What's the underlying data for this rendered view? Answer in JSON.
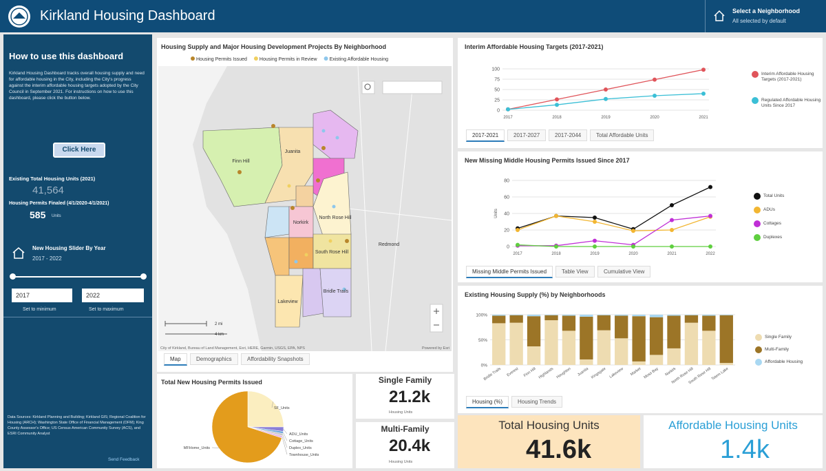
{
  "header": {
    "title": "Kirkland Housing Dashboard",
    "selector_title": "Select a Neighborhood",
    "selector_subtitle": "All selected by default"
  },
  "sidebar": {
    "heading": "How to use this dashboard",
    "description": "Kirkland Housing Dashboard tracks overall housing supply and need for affordable housing in the City, including the City's progress against the interim affordable housing targets adopted by the City Council in September 2021. For instructions on how to use this dashboard, please click the button below.",
    "button": "Click Here",
    "existing_label": "Existing Total Housing Units (2021)",
    "existing_value": "41,564",
    "finaled_label": "Housing Permits Finaled (4/1/2020-4/1/2021)",
    "finaled_value": "585",
    "finaled_unit": "Units",
    "slider_title": "New Housing Slider By Year",
    "slider_range": "2017 - 2022",
    "slider_min": "2017",
    "slider_max": "2022",
    "set_min": "Set to minimum",
    "set_max": "Set to maximum",
    "data_sources": "Data Sources: Kirkland Planning and Building; Kirkland GIS; Regional Coalition for Housing (ARCH); Washington State Office of Financial Management (OFM); King County Assessor's Office; US Census American Community Survey (ACS), and ESRI Community Analyst",
    "feedback": "Send Feedback"
  },
  "map": {
    "title": "Housing Supply and Major Housing Development Projects By Neighborhood",
    "legend": [
      "Housing Permits Issued",
      "Housing Permits in Review",
      "Existing Affordable Housing"
    ],
    "labels": [
      "Finn Hill",
      "Juanita",
      "North Rose Hill",
      "Norkirk",
      "South Rose Hill",
      "Bridle Trails",
      "Lakeview",
      "Redmond"
    ],
    "scale": [
      "2 mi",
      "4 km"
    ],
    "attribution": "City of Kirkland, Bureau of Land Management, Esri, HERE, Garmin, USGS, EPA, NPS",
    "powered": "Powered by Esri",
    "tabs": [
      "Map",
      "Demographics",
      "Affordability Snapshots"
    ]
  },
  "kpis": [
    {
      "title": "Single Family",
      "value": "21.2k",
      "unit": "Housing Units"
    },
    {
      "title": "Multi-Family",
      "value": "20.4k",
      "unit": "Housing Units"
    },
    {
      "title": "Total Housing Units",
      "value": "41.6k"
    },
    {
      "title": "Affordable Housing Units",
      "value": "1.4k"
    }
  ],
  "chart_data": [
    {
      "type": "pie",
      "title": "Total New Housing Permits Issued",
      "categories": [
        "SF_Units",
        "ADU_Units",
        "Cottage_Units",
        "Duplex_Units",
        "Townhouse_Units",
        "MFHome_Units"
      ],
      "values": [
        25,
        2,
        1,
        1,
        1,
        70
      ],
      "colors": [
        "#fbeec0",
        "#8a7fd6",
        "#6fa8dc",
        "#c9c9c9",
        "#e7b8e8",
        "#e39c1c"
      ]
    },
    {
      "type": "line",
      "title": "Interim Affordable Housing Targets (2017-2021)",
      "categories": [
        "2017",
        "2018",
        "2019",
        "2020",
        "2021"
      ],
      "series": [
        {
          "name": "Interim Affordable Housing Targets (2017-2021)",
          "color": "#e0545a",
          "values": [
            2,
            26,
            50,
            74,
            98
          ]
        },
        {
          "name": "Regulated Affordable Housing Units Since 2017",
          "color": "#3bbfd6",
          "values": [
            2,
            13,
            27,
            35,
            40
          ]
        }
      ],
      "ylim": [
        0,
        100
      ],
      "yticks": [
        0,
        25,
        50,
        75,
        100
      ],
      "grid": true,
      "tabs": [
        "2017-2021",
        "2017-2027",
        "2017-2044",
        "Total Affordable Units"
      ]
    },
    {
      "type": "line",
      "title": "New Missing Middle Housing Permits Issued Since 2017",
      "y_label": "Units",
      "categories": [
        "2017",
        "2018",
        "2019",
        "2020",
        "2021",
        "2022"
      ],
      "series": [
        {
          "name": "Total Units",
          "color": "#111111",
          "values": [
            22,
            37,
            35,
            21,
            50,
            72
          ]
        },
        {
          "name": "ADUs",
          "color": "#f2b632",
          "values": [
            20,
            37,
            30,
            19,
            20,
            36
          ]
        },
        {
          "name": "Cottages",
          "color": "#c02fd6",
          "values": [
            1,
            1,
            7,
            2,
            32,
            37
          ]
        },
        {
          "name": "Duplexes",
          "color": "#5fcf3f",
          "values": [
            2,
            0,
            0,
            0,
            0,
            0
          ]
        }
      ],
      "ylim": [
        0,
        80
      ],
      "yticks": [
        0,
        20,
        40,
        60,
        80
      ],
      "grid": true,
      "tabs": [
        "Missing Middle Permits Issued",
        "Table View",
        "Cumulative View"
      ]
    },
    {
      "type": "stacked_bar",
      "title": "Existing Housing Supply (%) by Neighborhoods",
      "categories": [
        "Bridle Trails",
        "Everest",
        "Finn Hill",
        "Highlands",
        "Houghton",
        "Juanita",
        "Kingsgate",
        "Lakeview",
        "Market",
        "Moss Bay",
        "Norkirk",
        "North Rose Hill",
        "South Rose Hill",
        "Totem Lake"
      ],
      "series": [
        {
          "name": "Single Family",
          "color": "#eedcb1",
          "values": [
            83,
            84,
            37,
            89,
            68,
            11,
            69,
            53,
            7,
            20,
            33,
            84,
            68,
            4
          ]
        },
        {
          "name": "Multi-Family",
          "color": "#9c7527",
          "values": [
            15,
            15,
            60,
            10,
            30,
            85,
            30,
            45,
            90,
            75,
            65,
            15,
            30,
            95
          ]
        },
        {
          "name": "Affordable Housing",
          "color": "#a9d8f2",
          "values": [
            2,
            1,
            3,
            1,
            2,
            4,
            1,
            2,
            3,
            5,
            2,
            1,
            2,
            1
          ]
        }
      ],
      "ylim": [
        0,
        100
      ],
      "yticks": [
        {
          "value": 0,
          "label": "0%"
        },
        {
          "value": 50,
          "label": "50%"
        },
        {
          "value": 100,
          "label": "100%"
        }
      ],
      "grid": true,
      "tabs": [
        "Housing (%)",
        "Housing Trends"
      ]
    }
  ]
}
